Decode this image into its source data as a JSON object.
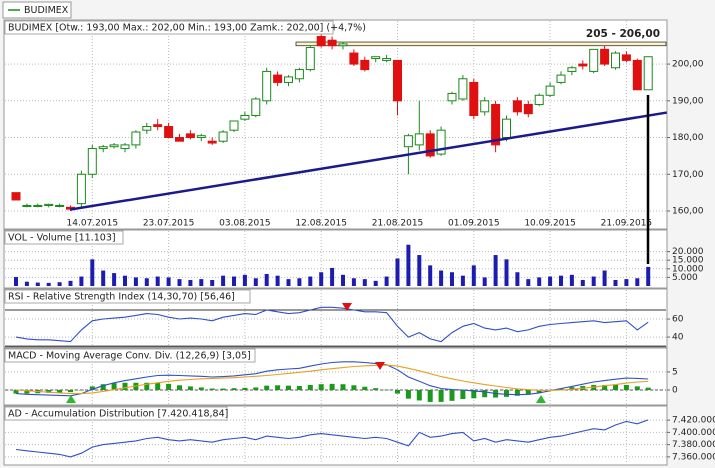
{
  "chart_data": [
    {
      "type": "candlestick",
      "title": "BUDIMEX",
      "subtitle": "BUDIMEX [Otw.: 193,00 Max.: 202,00 Min.: 193,00 Zamk.: 202,00] (+4,7%)",
      "categories": [
        null,
        null,
        null,
        null,
        null,
        null,
        null,
        "14.07.2015",
        null,
        null,
        null,
        null,
        null,
        null,
        "23.07.2015",
        null,
        null,
        null,
        null,
        null,
        null,
        "03.08.2015",
        null,
        null,
        null,
        null,
        null,
        null,
        "12.08.2015",
        null,
        null,
        null,
        null,
        null,
        null,
        "21.08.2015",
        null,
        null,
        null,
        null,
        null,
        null,
        "01.09.2015",
        null,
        null,
        null,
        null,
        null,
        null,
        "10.09.2015",
        null,
        null,
        null,
        null,
        null,
        null,
        "21.09.2015",
        null,
        null
      ],
      "open": [
        165,
        161.5,
        161.5,
        161.5,
        161.5,
        161,
        162,
        170,
        177,
        177.5,
        177,
        178,
        182,
        183.5,
        183,
        180,
        181,
        180,
        179,
        179,
        182,
        185,
        186,
        190,
        197,
        195,
        196,
        198.5,
        207.5,
        206.5,
        205,
        203,
        201,
        201.5,
        201,
        201,
        177.5,
        178,
        181,
        175.5,
        190,
        190.5,
        195,
        187,
        189,
        180,
        190,
        189,
        189,
        191.5,
        195,
        198,
        200,
        198,
        204,
        199,
        202.5,
        201,
        193
      ],
      "high": [
        165,
        162,
        162,
        162,
        162,
        161.5,
        171,
        178,
        178,
        178.5,
        178.5,
        182,
        184,
        185,
        184,
        181,
        182,
        181,
        180,
        182,
        184.5,
        187,
        191,
        199,
        198,
        197,
        199,
        205,
        209,
        207.5,
        206,
        204,
        202,
        202,
        202.5,
        201,
        181,
        190,
        182,
        183,
        192.5,
        197,
        196,
        191,
        190,
        186,
        191,
        190,
        192,
        195,
        198,
        199.5,
        201,
        204,
        205,
        203.5,
        203.5,
        201.5,
        202
      ],
      "low": [
        163,
        161,
        161,
        161,
        161,
        160,
        161,
        169,
        176,
        177,
        176,
        177,
        181,
        182,
        180,
        179,
        179.5,
        179,
        178,
        178.5,
        181.5,
        184.5,
        185.5,
        189,
        194,
        194,
        195,
        198,
        204.5,
        204,
        204,
        199.5,
        198,
        200.5,
        200.5,
        186,
        170,
        176.5,
        174.5,
        175,
        189,
        190,
        185,
        186,
        176,
        179,
        186,
        185.5,
        188.5,
        191,
        194.5,
        197,
        198.5,
        197.5,
        199.5,
        198.5,
        200.5,
        193,
        193
      ],
      "close": [
        163,
        161.5,
        161.5,
        161.8,
        161.5,
        160.5,
        170,
        177,
        177.5,
        178,
        178,
        181.5,
        183,
        183,
        180,
        179,
        180,
        180.5,
        178.5,
        181.5,
        184.5,
        186,
        190.5,
        198,
        195,
        196.5,
        198.5,
        204.5,
        205,
        205,
        205.5,
        200,
        198.5,
        202,
        201.5,
        190,
        180.5,
        181,
        175,
        182,
        192,
        196,
        186,
        190,
        178,
        185,
        187,
        186.5,
        191.5,
        194,
        197,
        199,
        199.5,
        204,
        200,
        203,
        201,
        193,
        202
      ],
      "up_color": "#1a8a1a",
      "down_color": "#e01010",
      "ylim": [
        158.5,
        212
      ],
      "yticks": [
        {
          "value": 160,
          "label": "160,00"
        },
        {
          "value": 170,
          "label": "170,00"
        },
        {
          "value": 180,
          "label": "180,00"
        },
        {
          "value": 190,
          "label": "190,00"
        },
        {
          "value": 200,
          "label": "200,00"
        }
      ],
      "band": [
        205,
        206
      ],
      "annotation": "205 - 206,00",
      "trendline": {
        "x": [
          5,
          59.7
        ],
        "y": [
          160.4,
          186.8
        ]
      },
      "grid": true
    },
    {
      "type": "bar",
      "title": "VOL - Volume [11.103]",
      "color": "#1c1cb0",
      "values": [
        5200,
        2500,
        2000,
        1800,
        2200,
        3000,
        5500,
        15500,
        9000,
        7500,
        6000,
        5000,
        4500,
        5500,
        5000,
        4000,
        3500,
        4000,
        3500,
        6000,
        5500,
        6500,
        4500,
        7000,
        6000,
        4000,
        4500,
        5500,
        8000,
        10500,
        6500,
        4500,
        4000,
        3000,
        5500,
        16000,
        24000,
        18000,
        12000,
        9000,
        8000,
        6000,
        12000,
        5000,
        18000,
        15500,
        8000,
        4000,
        5000,
        5500,
        6000,
        6500,
        3500,
        5500,
        9000,
        3500,
        4000,
        4500,
        11103
      ],
      "ylim": [
        0,
        25000
      ],
      "yticks": [
        {
          "value": 5000,
          "label": "5.000"
        },
        {
          "value": 10000,
          "label": "10.000"
        },
        {
          "value": 15000,
          "label": "15.000"
        },
        {
          "value": 20000,
          "label": "20.000"
        }
      ]
    },
    {
      "type": "line",
      "title": "RSI - Relative Strength Index (14,30,70) [56,46]",
      "color": "#3050c8",
      "values": [
        40,
        38,
        37,
        37,
        36,
        35,
        48,
        58,
        60,
        61,
        62,
        64,
        66,
        65,
        62,
        60,
        61,
        60,
        58,
        62,
        64,
        66,
        65,
        70,
        68,
        66,
        67,
        70,
        73,
        73,
        72,
        70,
        68,
        68,
        67,
        52,
        40,
        45,
        38,
        35,
        45,
        52,
        55,
        50,
        48,
        50,
        46,
        48,
        52,
        54,
        55,
        56,
        57,
        58,
        56,
        57,
        58,
        48,
        56.46
      ],
      "ylim": [
        29,
        80
      ],
      "yticks": [
        40,
        60
      ],
      "levels": [
        30,
        70
      ]
    },
    {
      "type": "macd",
      "title": "MACD - Moving Average Conv. Div. (12,26,9) [3,05]",
      "series": [
        {
          "name": "MACD",
          "color": "#3050c8",
          "values": [
            -1,
            -1.2,
            -1.3,
            -1.4,
            -1.5,
            -1.6,
            -1,
            0.2,
            1.2,
            2,
            2.6,
            3.1,
            3.6,
            4,
            4.1,
            4,
            3.9,
            3.8,
            3.6,
            3.7,
            3.9,
            4.2,
            4.5,
            5.2,
            5.6,
            5.8,
            6,
            6.6,
            7.2,
            7.6,
            7.8,
            7.8,
            7.6,
            7.3,
            7,
            5.6,
            3.6,
            2.4,
            1.2,
            0.4,
            0.1,
            0,
            -0.3,
            -0.5,
            -1,
            -1.2,
            -1.3,
            -1.2,
            -0.8,
            -0.2,
            0.4,
            1,
            1.6,
            2.2,
            2.6,
            3,
            3.3,
            3.2,
            3.05
          ]
        },
        {
          "name": "Signal",
          "color": "#e8a020",
          "values": [
            0,
            -0.2,
            -0.4,
            -0.6,
            -0.8,
            -1,
            -1,
            -0.8,
            -0.4,
            0.1,
            0.6,
            1.1,
            1.6,
            2,
            2.4,
            2.7,
            2.9,
            3.1,
            3.2,
            3.3,
            3.4,
            3.6,
            3.8,
            4,
            4.3,
            4.6,
            4.9,
            5.2,
            5.6,
            5.9,
            6.2,
            6.5,
            6.7,
            6.8,
            6.9,
            6.6,
            6,
            5.3,
            4.5,
            3.7,
            3.1,
            2.5,
            2,
            1.5,
            1.1,
            0.7,
            0.3,
            0.1,
            -0.1,
            -0.1,
            0,
            0.2,
            0.5,
            0.8,
            1.2,
            1.5,
            1.9,
            2.2,
            2.4
          ]
        }
      ],
      "histogram": [
        -1,
        -1,
        -0.9,
        -0.8,
        -0.7,
        -0.6,
        0,
        1,
        1.6,
        1.9,
        2,
        2,
        2,
        2,
        1.7,
        1.3,
        1,
        0.7,
        0.4,
        0.4,
        0.5,
        0.6,
        0.7,
        1.2,
        1.3,
        1.2,
        1.1,
        1.4,
        1.6,
        1.7,
        1.6,
        1.3,
        0.9,
        0.5,
        0.1,
        -1,
        -2.4,
        -2.9,
        -3.3,
        -3.3,
        -3,
        -2.5,
        -2.3,
        -2,
        -2.1,
        -1.9,
        -1.6,
        -1.3,
        -0.7,
        -0.1,
        0.4,
        0.8,
        1.1,
        1.4,
        1.4,
        1.5,
        1.4,
        1,
        0.65
      ],
      "histogram_color": "#1a9a1a",
      "ylim": [
        -3.6,
        8.3
      ],
      "yticks": [
        0,
        5
      ]
    },
    {
      "type": "line",
      "title": "AD - Accumulation Distribution [7.420.418,84]",
      "color": "#3050c8",
      "values": [
        7372000,
        7370000,
        7368000,
        7366000,
        7364000,
        7360000,
        7366000,
        7376000,
        7380000,
        7382000,
        7384000,
        7386000,
        7390000,
        7392000,
        7388000,
        7386000,
        7388000,
        7386000,
        7384000,
        7388000,
        7390000,
        7392000,
        7388000,
        7394000,
        7392000,
        7390000,
        7392000,
        7396000,
        7398000,
        7396000,
        7394000,
        7392000,
        7390000,
        7392000,
        7390000,
        7384000,
        7378000,
        7400000,
        7392000,
        7394000,
        7398000,
        7400000,
        7386000,
        7390000,
        7384000,
        7388000,
        7386000,
        7384000,
        7388000,
        7392000,
        7394000,
        7398000,
        7402000,
        7406000,
        7404000,
        7412000,
        7418000,
        7414000,
        7420418.84
      ],
      "ylim": [
        7350000,
        7430000
      ],
      "yticks": [
        {
          "value": 7360000,
          "label": "7.360.000"
        },
        {
          "value": 7380000,
          "label": "7.380.000"
        },
        {
          "value": 7400000,
          "label": "7.400.000"
        },
        {
          "value": 7420000,
          "label": "7.420.000"
        }
      ]
    }
  ]
}
